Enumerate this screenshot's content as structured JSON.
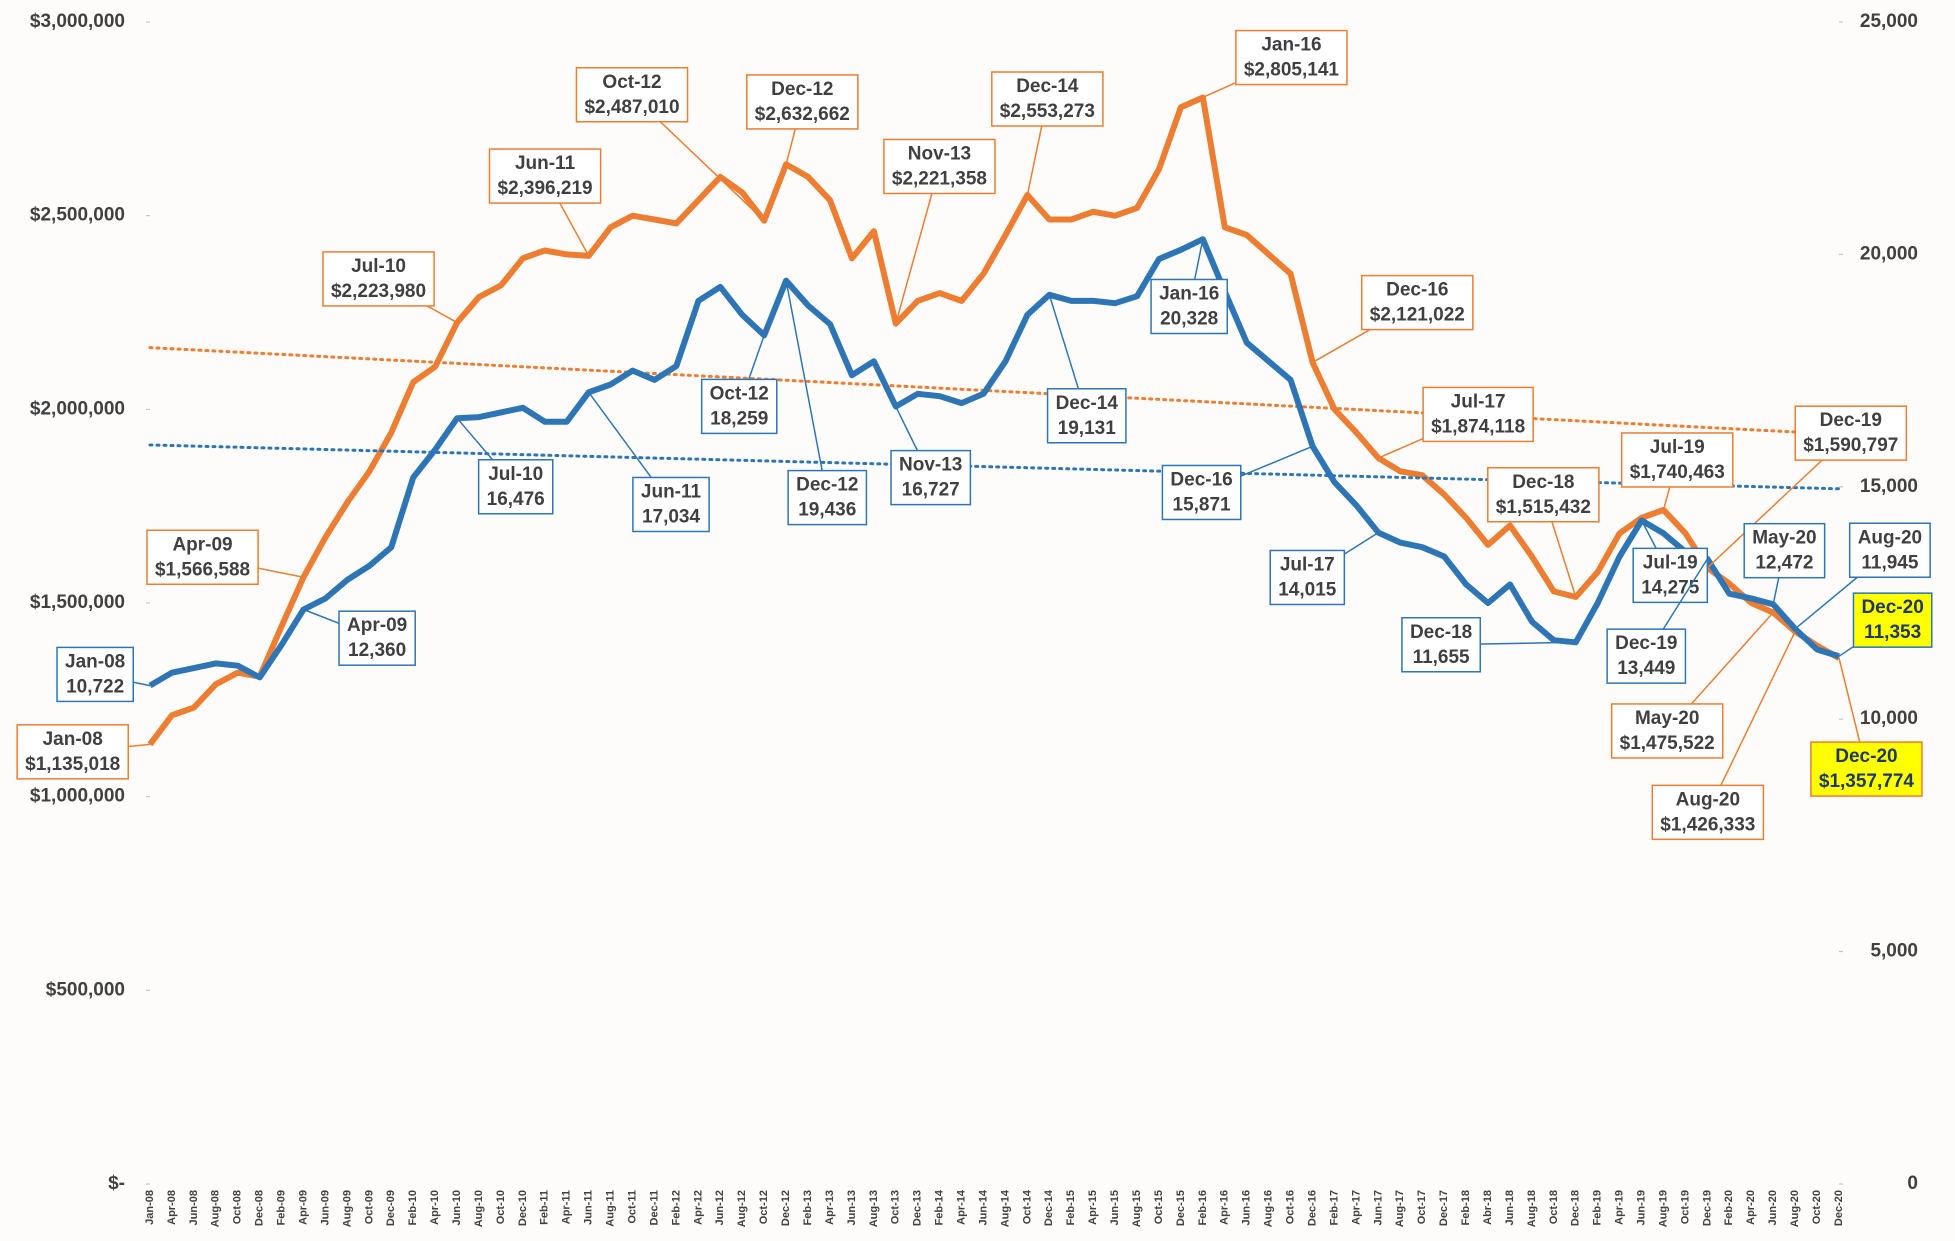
{
  "chart_data": {
    "type": "line",
    "categories": [
      "Jan-08",
      "Apr-08",
      "Jun-08",
      "Aug-08",
      "Oct-08",
      "Dec-08",
      "Feb-09",
      "Apr-09",
      "Jun-09",
      "Aug-09",
      "Oct-09",
      "Dec-09",
      "Feb-10",
      "Apr-10",
      "Jun-10",
      "Aug-10",
      "Oct-10",
      "Dec-10",
      "Feb-11",
      "Apr-11",
      "Jun-11",
      "Aug-11",
      "Oct-11",
      "Dec-11",
      "Feb-12",
      "Apr-12",
      "Jun-12",
      "Aug-12",
      "Oct-12",
      "Dec-12",
      "Feb-13",
      "Apr-13",
      "Jun-13",
      "Aug-13",
      "Oct-13",
      "Dec-13",
      "Feb-14",
      "Apr-14",
      "Jun-14",
      "Aug-14",
      "Oct-14",
      "Dec-14",
      "Feb-15",
      "Apr-15",
      "Jun-15",
      "Aug-15",
      "Oct-15",
      "Dec-15",
      "Feb-16",
      "Apr-16",
      "Jun-16",
      "Aug-16",
      "Oct-16",
      "Dec-16",
      "Feb-17",
      "Apr-17",
      "Jun-17",
      "Aug-17",
      "Oct-17",
      "Dec-17",
      "Feb-18",
      "Abr-18",
      "Jun-18",
      "Aug-18",
      "Oct-18",
      "Dec-18",
      "Feb-19",
      "Apr-19",
      "Jun-19",
      "Aug-19",
      "Oct-19",
      "Dec-19",
      "Feb-20",
      "Apr-20",
      "Jun-20",
      "Aug-20",
      "Oct-20",
      "Dec-20"
    ],
    "ylim": [
      0,
      3000000
    ],
    "yticks": [
      {
        "value": 0,
        "label": "$-"
      },
      {
        "value": 500000,
        "label": "$500,000"
      },
      {
        "value": 1000000,
        "label": "$1,000,000"
      },
      {
        "value": 1500000,
        "label": "$1,500,000"
      },
      {
        "value": 2000000,
        "label": "$2,000,000"
      },
      {
        "value": 2500000,
        "label": "$2,500,000"
      },
      {
        "value": 3000000,
        "label": "$3,000,000"
      }
    ],
    "y2lim": [
      0,
      25000
    ],
    "y2ticks": [
      0,
      {
        "value": 5000,
        "label": "5,000"
      },
      {
        "value": 10000,
        "label": "10,000"
      },
      {
        "value": 15000,
        "label": "15,000"
      },
      {
        "value": 20000,
        "label": "20,000"
      },
      {
        "value": 25000,
        "label": "25,000"
      }
    ],
    "annotation_highlight_color": "#ffff00",
    "series": [
      {
        "color": "#ed7d31",
        "trendline": true,
        "values": [
          1135018,
          1210000,
          1230000,
          1290000,
          1320000,
          1310000,
          1440000,
          1566588,
          1670000,
          1760000,
          1840000,
          1940000,
          2070000,
          2110000,
          2223980,
          2290000,
          2320000,
          2390000,
          2410000,
          2400000,
          2396219,
          2470000,
          2500000,
          2490000,
          2480000,
          2540000,
          2600000,
          2560000,
          2487010,
          2632662,
          2600000,
          2540000,
          2390000,
          2460000,
          2221358,
          2280000,
          2300000,
          2280000,
          2350000,
          2450000,
          2553273,
          2490000,
          2490000,
          2510000,
          2500000,
          2520000,
          2620000,
          2780000,
          2805141,
          2470000,
          2450000,
          2400000,
          2350000,
          2121022,
          2000000,
          1940000,
          1874118,
          1840000,
          1830000,
          1780000,
          1720000,
          1650000,
          1700000,
          1620000,
          1530000,
          1515432,
          1580000,
          1680000,
          1720000,
          1740463,
          1680000,
          1590797,
          1550000,
          1500000,
          1475522,
          1426333,
          1390000,
          1357774
        ],
        "point_labels": [
          "Jan-08",
          null,
          null,
          null,
          null,
          null,
          null,
          "Apr-09",
          null,
          null,
          null,
          null,
          null,
          null,
          "Jul-10",
          null,
          null,
          null,
          null,
          null,
          "Jun-11",
          null,
          null,
          null,
          null,
          null,
          null,
          null,
          "Oct-12",
          "Dec-12",
          null,
          null,
          null,
          null,
          "Nov-13",
          null,
          null,
          null,
          null,
          null,
          "Dec-14",
          null,
          null,
          null,
          null,
          null,
          null,
          null,
          "Jan-16",
          null,
          null,
          null,
          null,
          "Dec-16",
          null,
          null,
          "Jul-17",
          null,
          null,
          null,
          null,
          null,
          null,
          null,
          null,
          "Dec-18",
          null,
          null,
          null,
          "Jul-19",
          null,
          "Dec-19",
          null,
          null,
          "May-20",
          "Aug-20",
          null,
          "Dec-20"
        ],
        "value_labels": [
          "$1,135,018",
          null,
          null,
          null,
          null,
          null,
          null,
          "$1,566,588",
          null,
          null,
          null,
          null,
          null,
          null,
          "$2,223,980",
          null,
          null,
          null,
          null,
          null,
          "$2,396,219",
          null,
          null,
          null,
          null,
          null,
          null,
          null,
          "$2,487,010",
          "$2,632,662",
          null,
          null,
          null,
          null,
          "$2,221,358",
          null,
          null,
          null,
          null,
          null,
          "$2,553,273",
          null,
          null,
          null,
          null,
          null,
          null,
          null,
          "$2,805,141",
          null,
          null,
          null,
          null,
          "$2,121,022",
          null,
          null,
          "$1,874,118",
          null,
          null,
          null,
          null,
          null,
          null,
          null,
          null,
          "$1,515,432",
          null,
          null,
          null,
          "$1,740,463",
          null,
          "$1,590,797",
          null,
          null,
          "$1,475,522",
          "$1,426,333",
          null,
          "$1,357,774"
        ]
      },
      {
        "color": "#2e75b6",
        "axis": "y2",
        "trendline": true,
        "values": [
          10722,
          11000,
          11100,
          11200,
          11150,
          10900,
          11600,
          12360,
          12600,
          13000,
          13300,
          13700,
          15200,
          15800,
          16476,
          16500,
          16600,
          16700,
          16400,
          16400,
          17034,
          17200,
          17500,
          17300,
          17600,
          19000,
          19300,
          18700,
          18259,
          19436,
          18900,
          18500,
          17400,
          17700,
          16727,
          17000,
          16950,
          16800,
          17000,
          17700,
          18700,
          19131,
          19000,
          19000,
          18950,
          19100,
          19900,
          20100,
          20328,
          19200,
          18100,
          17700,
          17300,
          15871,
          15100,
          14600,
          14015,
          13800,
          13700,
          13500,
          12900,
          12500,
          12900,
          12100,
          11700,
          11655,
          12500,
          13500,
          14275,
          14000,
          13600,
          13449,
          12700,
          12600,
          12472,
          11945,
          11500,
          11353
        ],
        "point_labels": [
          "Jan-08",
          null,
          null,
          null,
          null,
          null,
          null,
          "Apr-09",
          null,
          null,
          null,
          null,
          null,
          null,
          "Jul-10",
          null,
          null,
          null,
          null,
          null,
          "Jun-11",
          null,
          null,
          null,
          null,
          null,
          null,
          null,
          "Oct-12",
          "Dec-12",
          null,
          null,
          null,
          null,
          "Nov-13",
          null,
          null,
          null,
          null,
          null,
          null,
          "Dec-14",
          null,
          null,
          null,
          null,
          null,
          null,
          "Jan-16",
          null,
          null,
          null,
          null,
          "Dec-16",
          null,
          null,
          "Jul-17",
          null,
          null,
          null,
          null,
          null,
          null,
          null,
          null,
          "Dec-18",
          null,
          null,
          "Jul-19",
          null,
          null,
          "Dec-19",
          null,
          null,
          "May-20",
          "Aug-20",
          null,
          "Dec-20"
        ],
        "value_labels": [
          "10,722",
          null,
          null,
          null,
          null,
          null,
          null,
          "12,360",
          null,
          null,
          null,
          null,
          null,
          null,
          "16,476",
          null,
          null,
          null,
          null,
          null,
          "17,034",
          null,
          null,
          null,
          null,
          null,
          null,
          null,
          "18,259",
          "19,436",
          null,
          null,
          null,
          null,
          "16,727",
          null,
          null,
          null,
          null,
          null,
          null,
          "19,131",
          null,
          null,
          null,
          null,
          null,
          null,
          "20,328",
          null,
          null,
          null,
          null,
          "15,871",
          null,
          null,
          "14,015",
          null,
          null,
          null,
          null,
          null,
          null,
          null,
          null,
          "11,655",
          null,
          null,
          "14,275",
          null,
          null,
          "13,449",
          null,
          null,
          "12,472",
          "11,945",
          null,
          "11,353"
        ]
      }
    ]
  }
}
